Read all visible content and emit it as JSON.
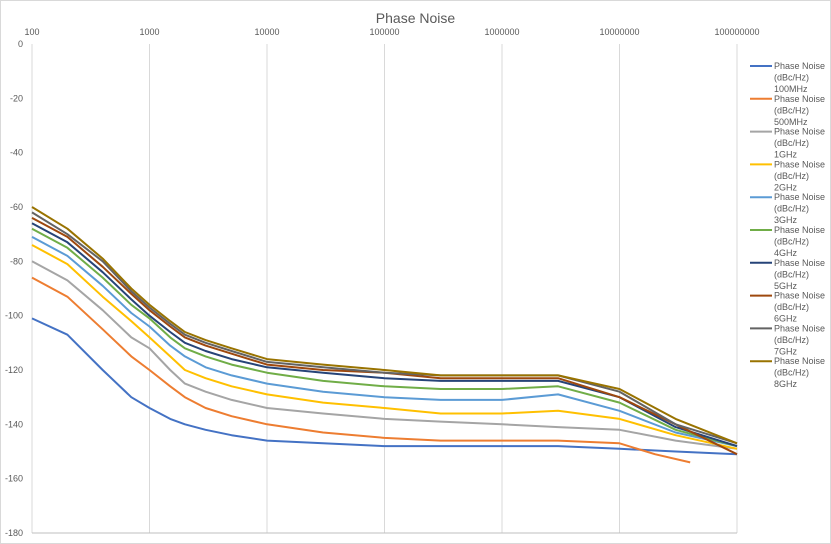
{
  "chart_data": {
    "type": "line",
    "title": "Phase Noise",
    "xscale": "log",
    "xlim": [
      100,
      100000000
    ],
    "ylim": [
      -180,
      0
    ],
    "x_ticks": [
      "100",
      "1000",
      "10000",
      "100000",
      "1000000",
      "10000000",
      "100000000"
    ],
    "y_ticks": [
      "0",
      "-20",
      "-40",
      "-60",
      "-80",
      "-100",
      "-120",
      "-140",
      "-160",
      "-180"
    ],
    "grid": {
      "vertical": true,
      "horizontal": false
    },
    "legend_position": "right",
    "series": [
      {
        "name": "Phase Noise (dBc/Hz) 100MHz",
        "color": "#4472c4",
        "x": [
          100,
          200,
          400,
          700,
          1000,
          1500,
          2000,
          3000,
          5000,
          10000,
          30000,
          100000,
          300000,
          1000000,
          3000000,
          10000000,
          30000000,
          100000000
        ],
        "y": [
          -101,
          -107,
          -120,
          -130,
          -134,
          -138,
          -140,
          -142,
          -144,
          -146,
          -147,
          -148,
          -148,
          -148,
          -148,
          -149,
          -150,
          -151
        ]
      },
      {
        "name": "Phase Noise (dBc/Hz) 500MHz",
        "color": "#ed7d31",
        "x": [
          100,
          200,
          400,
          700,
          1000,
          1500,
          2000,
          3000,
          5000,
          10000,
          30000,
          100000,
          300000,
          1000000,
          3000000,
          10000000,
          20000000,
          40000000
        ],
        "y": [
          -86,
          -93,
          -105,
          -115,
          -120,
          -126,
          -130,
          -134,
          -137,
          -140,
          -143,
          -145,
          -146,
          -146,
          -146,
          -147,
          -151,
          -154
        ]
      },
      {
        "name": "Phase Noise (dBc/Hz) 1GHz",
        "color": "#a5a5a5",
        "x": [
          100,
          200,
          400,
          700,
          1000,
          1500,
          2000,
          3000,
          5000,
          10000,
          30000,
          100000,
          300000,
          1000000,
          3000000,
          10000000,
          30000000,
          100000000
        ],
        "y": [
          -80,
          -87,
          -98,
          -108,
          -112,
          -120,
          -125,
          -128,
          -131,
          -134,
          -136,
          -138,
          -139,
          -140,
          -141,
          -142,
          -146,
          -149
        ]
      },
      {
        "name": "Phase Noise (dBc/Hz) 2GHz",
        "color": "#ffc000",
        "x": [
          100,
          200,
          400,
          700,
          1000,
          1500,
          2000,
          3000,
          5000,
          10000,
          30000,
          100000,
          300000,
          1000000,
          3000000,
          10000000,
          30000000,
          100000000
        ],
        "y": [
          -74,
          -81,
          -93,
          -102,
          -108,
          -115,
          -120,
          -123,
          -126,
          -129,
          -132,
          -134,
          -136,
          -136,
          -135,
          -138,
          -144,
          -149
        ]
      },
      {
        "name": "Phase Noise (dBc/Hz) 3GHz",
        "color": "#5b9bd5",
        "x": [
          100,
          200,
          400,
          700,
          1000,
          1500,
          2000,
          3000,
          5000,
          10000,
          30000,
          100000,
          300000,
          1000000,
          3000000,
          10000000,
          30000000,
          100000000
        ],
        "y": [
          -71,
          -78,
          -89,
          -99,
          -104,
          -111,
          -115,
          -119,
          -122,
          -125,
          -128,
          -130,
          -131,
          -131,
          -129,
          -135,
          -143,
          -148
        ]
      },
      {
        "name": "Phase Noise (dBc/Hz) 4GHz",
        "color": "#70ad47",
        "x": [
          100,
          200,
          400,
          700,
          1000,
          1500,
          2000,
          3000,
          5000,
          10000,
          30000,
          100000,
          300000,
          1000000,
          3000000,
          10000000,
          30000000,
          100000000
        ],
        "y": [
          -68,
          -75,
          -86,
          -96,
          -101,
          -108,
          -112,
          -115,
          -118,
          -121,
          -124,
          -126,
          -127,
          -127,
          -126,
          -132,
          -142,
          -148
        ]
      },
      {
        "name": "Phase Noise (dBc/Hz) 5GHz",
        "color": "#264478",
        "x": [
          100,
          200,
          400,
          700,
          1000,
          1500,
          2000,
          3000,
          5000,
          10000,
          30000,
          100000,
          300000,
          1000000,
          3000000,
          10000000,
          30000000,
          100000000
        ],
        "y": [
          -66,
          -73,
          -84,
          -94,
          -100,
          -106,
          -110,
          -113,
          -116,
          -119,
          -121,
          -123,
          -124,
          -124,
          -124,
          -130,
          -141,
          -148
        ]
      },
      {
        "name": "Phase Noise (dBc/Hz) 6GHz",
        "color": "#9e480e",
        "x": [
          100,
          200,
          400,
          700,
          1000,
          1500,
          2000,
          3000,
          5000,
          10000,
          30000,
          100000,
          300000,
          1000000,
          3000000,
          10000000,
          30000000,
          100000000
        ],
        "y": [
          -64,
          -71,
          -82,
          -92,
          -98,
          -104,
          -108,
          -111,
          -114,
          -118,
          -120,
          -121,
          -123,
          -123,
          -123,
          -130,
          -140,
          -151
        ]
      },
      {
        "name": "Phase Noise (dBc/Hz) 7GHz",
        "color": "#636363",
        "x": [
          100,
          200,
          400,
          700,
          1000,
          1500,
          2000,
          3000,
          5000,
          10000,
          30000,
          100000,
          300000,
          1000000,
          3000000,
          10000000,
          30000000,
          100000000
        ],
        "y": [
          -62,
          -70,
          -80,
          -91,
          -97,
          -103,
          -107,
          -110,
          -113,
          -117,
          -119,
          -121,
          -122,
          -122,
          -122,
          -128,
          -140,
          -147
        ]
      },
      {
        "name": "Phase Noise (dBc/Hz) 8GHz",
        "color": "#997300",
        "x": [
          100,
          200,
          400,
          700,
          1000,
          1500,
          2000,
          3000,
          5000,
          10000,
          30000,
          100000,
          300000,
          1000000,
          3000000,
          10000000,
          30000000,
          100000000
        ],
        "y": [
          -60,
          -68,
          -79,
          -90,
          -96,
          -102,
          -106,
          -109,
          -112,
          -116,
          -118,
          -120,
          -122,
          -122,
          -122,
          -127,
          -138,
          -147
        ]
      }
    ]
  }
}
